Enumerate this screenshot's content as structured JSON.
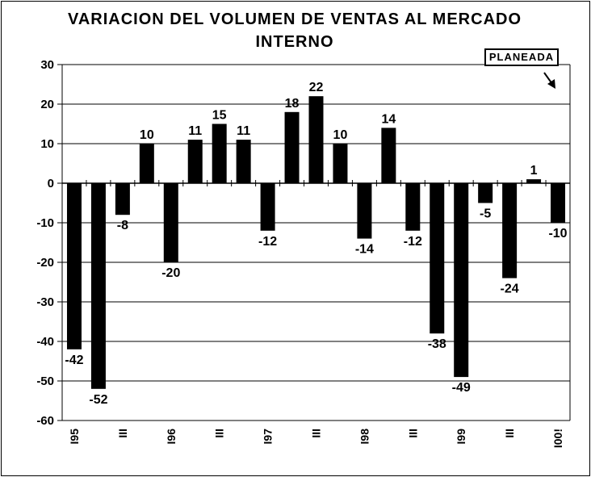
{
  "chart_data": {
    "type": "bar",
    "title": "VARIACION DEL VOLUMEN DE VENTAS AL MERCADO INTERNO",
    "title_lines": [
      "VARIACION DEL VOLUMEN DE VENTAS AL MERCADO",
      "INTERNO"
    ],
    "ylim": [
      -60,
      30
    ],
    "yticks": [
      30,
      20,
      10,
      0,
      -10,
      -20,
      -30,
      -40,
      -50,
      -60
    ],
    "grid": true,
    "bar_color": "#000000",
    "values": [
      -42,
      -52,
      -8,
      10,
      -20,
      11,
      15,
      11,
      -12,
      18,
      22,
      10,
      -14,
      14,
      -12,
      -38,
      -49,
      -5,
      -24,
      1,
      -10
    ],
    "x_tick_labels": [
      "I95",
      "III",
      "I96",
      "III",
      "I97",
      "III",
      "I98",
      "III",
      "I99",
      "III",
      "I00!"
    ],
    "x_tick_label_bar_index": [
      0,
      2,
      4,
      6,
      8,
      10,
      12,
      14,
      16,
      18,
      20
    ],
    "annotation": "PLANEADA",
    "annotation_target": "arrow-down-right"
  }
}
